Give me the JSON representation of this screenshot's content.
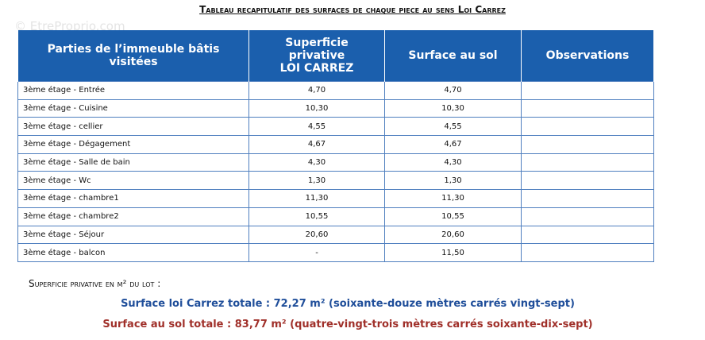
{
  "watermark": "© EtreProprio.com",
  "title": "Tableau recapitulatif des surfaces de chaque piece au sens Loi Carrez",
  "table": {
    "header": [
      "Parties de l’immeuble bâtis\nvisitées",
      "Superficie\nprivative\nLOI CARREZ",
      "Surface au sol",
      "Observations"
    ],
    "rows": [
      [
        "3ème étage - Entrée",
        "4,70",
        "4,70"
      ],
      [
        "3ème étage - Cuisine",
        "10,30",
        "10,30"
      ],
      [
        "3ème étage - cellier",
        "4,55",
        "4,55"
      ],
      [
        "3ème étage - Dégagement",
        "4,67",
        "4,67"
      ],
      [
        "3ème étage - Salle de bain",
        "4,30",
        "4,30"
      ],
      [
        "3ème étage - Wc",
        "1,30",
        "1,30"
      ],
      [
        "3ème étage - chambre1",
        "11,30",
        "11,30"
      ],
      [
        "3ème étage - chambre2",
        "10,55",
        "10,55"
      ],
      [
        "3ème étage - Séjour",
        "20,60",
        "20,60"
      ],
      [
        "3ème étage - balcon",
        "-",
        "11,50"
      ]
    ]
  },
  "footer": {
    "lot": "Superficie privative en m² du lot :",
    "carrez_total": "Surface loi Carrez totale : 72,27 m² (soixante-douze mètres carrés vingt-sept)",
    "sol_total": "Surface au sol totale : 83,77 m² (quatre-vingt-trois mètres carrés soixante-dix-sept)"
  }
}
